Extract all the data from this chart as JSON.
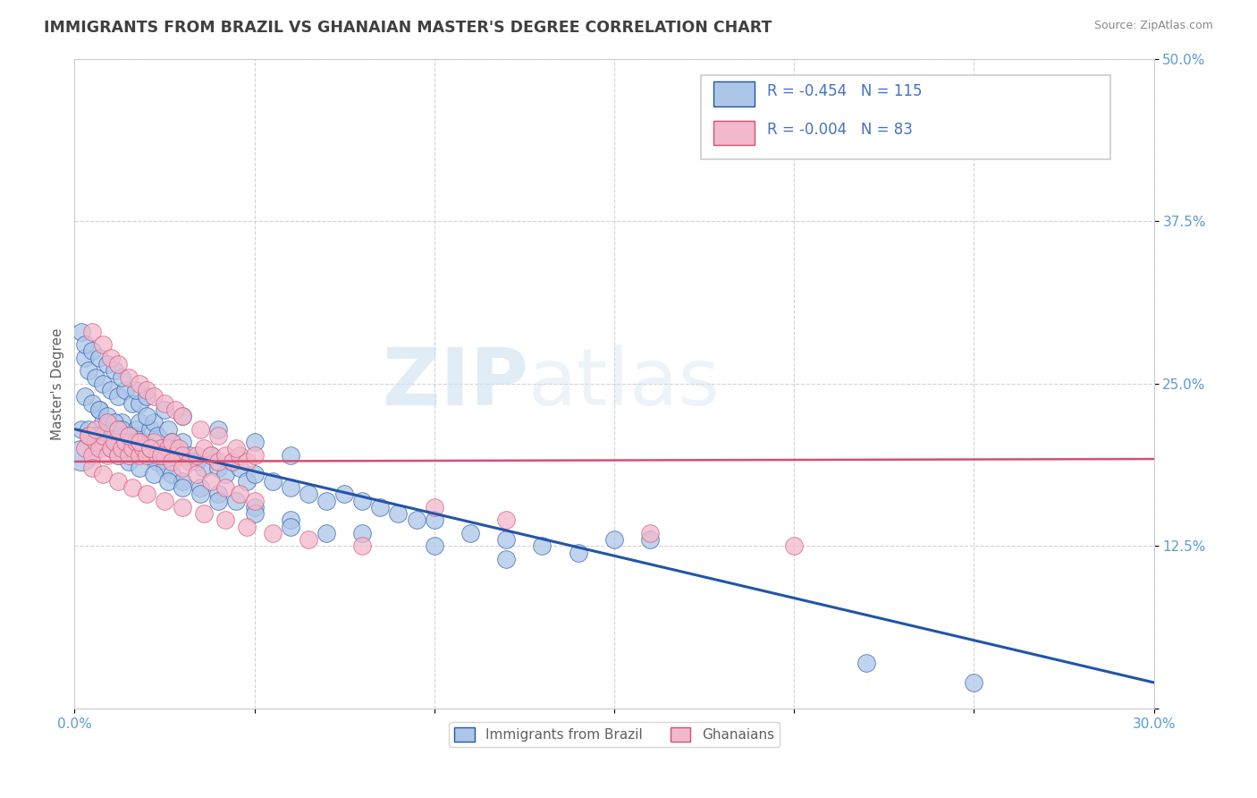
{
  "title": "IMMIGRANTS FROM BRAZIL VS GHANAIAN MASTER'S DEGREE CORRELATION CHART",
  "source": "Source: ZipAtlas.com",
  "ylabel": "Master's Degree",
  "xlim": [
    0.0,
    0.3
  ],
  "ylim": [
    0.0,
    0.5
  ],
  "xticks": [
    0.0,
    0.05,
    0.1,
    0.15,
    0.2,
    0.25,
    0.3
  ],
  "yticks": [
    0.0,
    0.125,
    0.25,
    0.375,
    0.5
  ],
  "xticklabels": [
    "0.0%",
    "",
    "",
    "",
    "",
    "",
    "30.0%"
  ],
  "yticklabels": [
    "",
    "12.5%",
    "25.0%",
    "37.5%",
    "50.0%"
  ],
  "legend_r1": "-0.454",
  "legend_n1": "115",
  "legend_r2": "-0.004",
  "legend_n2": "83",
  "series1_label": "Immigrants from Brazil",
  "series2_label": "Ghanaians",
  "watermark_zip": "ZIP",
  "watermark_atlas": "atlas",
  "background_color": "#ffffff",
  "grid_color": "#c8c8c8",
  "title_color": "#404040",
  "tick_color": "#5b9bd5",
  "scatter1_color": "#adc6e8",
  "scatter2_color": "#f2b8cc",
  "line1_color": "#2255aa",
  "line2_color": "#d45070",
  "legend_text_color": "#4472c4",
  "source_color": "#888888",
  "brazil_x": [
    0.005,
    0.007,
    0.008,
    0.009,
    0.01,
    0.011,
    0.012,
    0.013,
    0.014,
    0.015,
    0.016,
    0.017,
    0.018,
    0.019,
    0.02,
    0.021,
    0.022,
    0.023,
    0.024,
    0.025,
    0.026,
    0.027,
    0.028,
    0.029,
    0.03,
    0.032,
    0.034,
    0.036,
    0.038,
    0.04,
    0.042,
    0.044,
    0.046,
    0.048,
    0.05,
    0.055,
    0.06,
    0.065,
    0.07,
    0.075,
    0.08,
    0.085,
    0.09,
    0.095,
    0.1,
    0.11,
    0.12,
    0.13,
    0.14,
    0.15,
    0.003,
    0.004,
    0.006,
    0.008,
    0.01,
    0.012,
    0.014,
    0.016,
    0.018,
    0.02,
    0.003,
    0.005,
    0.007,
    0.009,
    0.011,
    0.013,
    0.015,
    0.017,
    0.019,
    0.021,
    0.023,
    0.025,
    0.027,
    0.03,
    0.035,
    0.04,
    0.045,
    0.05,
    0.06,
    0.07,
    0.002,
    0.004,
    0.006,
    0.008,
    0.01,
    0.012,
    0.015,
    0.018,
    0.022,
    0.026,
    0.03,
    0.035,
    0.04,
    0.05,
    0.06,
    0.08,
    0.1,
    0.12,
    0.002,
    0.003,
    0.005,
    0.007,
    0.009,
    0.011,
    0.013,
    0.017,
    0.02,
    0.025,
    0.03,
    0.04,
    0.05,
    0.06,
    0.16,
    0.22,
    0.25
  ],
  "brazil_y": [
    0.21,
    0.23,
    0.22,
    0.215,
    0.2,
    0.21,
    0.215,
    0.22,
    0.205,
    0.195,
    0.21,
    0.215,
    0.22,
    0.205,
    0.2,
    0.215,
    0.22,
    0.21,
    0.2,
    0.195,
    0.215,
    0.205,
    0.2,
    0.195,
    0.205,
    0.195,
    0.19,
    0.185,
    0.195,
    0.185,
    0.18,
    0.19,
    0.185,
    0.175,
    0.18,
    0.175,
    0.17,
    0.165,
    0.16,
    0.165,
    0.16,
    0.155,
    0.15,
    0.145,
    0.145,
    0.135,
    0.13,
    0.125,
    0.12,
    0.13,
    0.27,
    0.26,
    0.255,
    0.25,
    0.245,
    0.24,
    0.245,
    0.235,
    0.235,
    0.225,
    0.24,
    0.235,
    0.23,
    0.225,
    0.22,
    0.215,
    0.21,
    0.205,
    0.2,
    0.195,
    0.19,
    0.185,
    0.18,
    0.175,
    0.17,
    0.165,
    0.16,
    0.155,
    0.145,
    0.135,
    0.215,
    0.215,
    0.21,
    0.205,
    0.2,
    0.195,
    0.19,
    0.185,
    0.18,
    0.175,
    0.17,
    0.165,
    0.16,
    0.15,
    0.14,
    0.135,
    0.125,
    0.115,
    0.29,
    0.28,
    0.275,
    0.27,
    0.265,
    0.26,
    0.255,
    0.245,
    0.24,
    0.23,
    0.225,
    0.215,
    0.205,
    0.195,
    0.13,
    0.035,
    0.02
  ],
  "brazil_big_x": [
    0.002
  ],
  "brazil_big_y": [
    0.195
  ],
  "ghana_x": [
    0.003,
    0.004,
    0.005,
    0.006,
    0.007,
    0.008,
    0.009,
    0.01,
    0.011,
    0.012,
    0.013,
    0.014,
    0.015,
    0.016,
    0.017,
    0.018,
    0.019,
    0.02,
    0.021,
    0.022,
    0.023,
    0.024,
    0.025,
    0.026,
    0.027,
    0.028,
    0.029,
    0.03,
    0.032,
    0.034,
    0.036,
    0.038,
    0.04,
    0.042,
    0.044,
    0.046,
    0.048,
    0.05,
    0.005,
    0.008,
    0.01,
    0.012,
    0.015,
    0.018,
    0.02,
    0.022,
    0.025,
    0.028,
    0.03,
    0.035,
    0.04,
    0.045,
    0.004,
    0.006,
    0.009,
    0.012,
    0.015,
    0.018,
    0.021,
    0.024,
    0.027,
    0.03,
    0.034,
    0.038,
    0.042,
    0.046,
    0.05,
    0.005,
    0.008,
    0.012,
    0.016,
    0.02,
    0.025,
    0.03,
    0.036,
    0.042,
    0.048,
    0.055,
    0.065,
    0.08,
    0.1,
    0.12,
    0.16,
    0.2
  ],
  "ghana_y": [
    0.2,
    0.21,
    0.195,
    0.205,
    0.2,
    0.21,
    0.195,
    0.2,
    0.205,
    0.195,
    0.2,
    0.205,
    0.195,
    0.2,
    0.205,
    0.195,
    0.2,
    0.195,
    0.2,
    0.205,
    0.195,
    0.2,
    0.195,
    0.2,
    0.205,
    0.195,
    0.2,
    0.195,
    0.19,
    0.195,
    0.2,
    0.195,
    0.19,
    0.195,
    0.19,
    0.195,
    0.19,
    0.195,
    0.29,
    0.28,
    0.27,
    0.265,
    0.255,
    0.25,
    0.245,
    0.24,
    0.235,
    0.23,
    0.225,
    0.215,
    0.21,
    0.2,
    0.21,
    0.215,
    0.22,
    0.215,
    0.21,
    0.205,
    0.2,
    0.195,
    0.19,
    0.185,
    0.18,
    0.175,
    0.17,
    0.165,
    0.16,
    0.185,
    0.18,
    0.175,
    0.17,
    0.165,
    0.16,
    0.155,
    0.15,
    0.145,
    0.14,
    0.135,
    0.13,
    0.125,
    0.155,
    0.145,
    0.135,
    0.125
  ],
  "line1_x0": 0.0,
  "line1_y0": 0.215,
  "line1_x1": 0.3,
  "line1_y1": 0.02,
  "line2_x0": 0.0,
  "line2_y0": 0.19,
  "line2_x1": 0.3,
  "line2_y1": 0.192
}
